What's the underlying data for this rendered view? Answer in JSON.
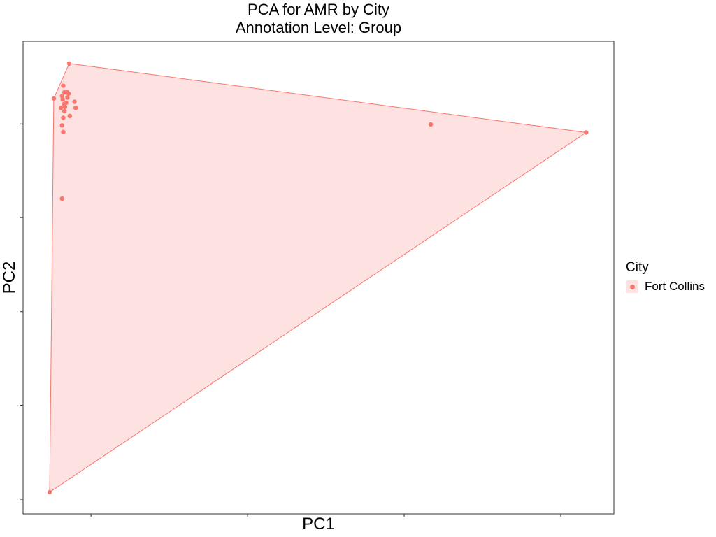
{
  "chart_data": {
    "type": "scatter",
    "title": "PCA for AMR by City",
    "subtitle": "Annotation Level: Group",
    "xlabel": "PC1",
    "ylabel": "PC2",
    "xlim": [
      0,
      100
    ],
    "ylim": [
      0,
      100
    ],
    "grid": false,
    "tick_labels_visible": false,
    "legend": {
      "title": "City",
      "placement": "right"
    },
    "hull": true,
    "colors": {
      "point": "#f8766d",
      "hull_fill": "#fde2e1",
      "hull_stroke": "#f8766d"
    },
    "series": [
      {
        "name": "Fort Collins",
        "points": [
          {
            "x": 7.8,
            "y": 95.3
          },
          {
            "x": 5.2,
            "y": 87.9
          },
          {
            "x": 4.5,
            "y": 4.6
          },
          {
            "x": 95.3,
            "y": 80.7
          },
          {
            "x": 69.0,
            "y": 82.4
          },
          {
            "x": 6.6,
            "y": 66.7
          },
          {
            "x": 6.8,
            "y": 90.6
          },
          {
            "x": 7.0,
            "y": 89.2
          },
          {
            "x": 7.5,
            "y": 88.1
          },
          {
            "x": 7.7,
            "y": 88.9
          },
          {
            "x": 6.7,
            "y": 87.7
          },
          {
            "x": 7.3,
            "y": 87.0
          },
          {
            "x": 6.9,
            "y": 86.7
          },
          {
            "x": 7.1,
            "y": 86.1
          },
          {
            "x": 6.4,
            "y": 85.9
          },
          {
            "x": 8.7,
            "y": 87.2
          },
          {
            "x": 8.9,
            "y": 85.9
          },
          {
            "x": 7.0,
            "y": 85.2
          },
          {
            "x": 7.9,
            "y": 84.2
          },
          {
            "x": 6.8,
            "y": 83.8
          },
          {
            "x": 6.6,
            "y": 82.2
          },
          {
            "x": 6.8,
            "y": 80.8
          },
          {
            "x": 7.4,
            "y": 89.3
          },
          {
            "x": 6.6,
            "y": 88.4
          }
        ]
      }
    ]
  }
}
